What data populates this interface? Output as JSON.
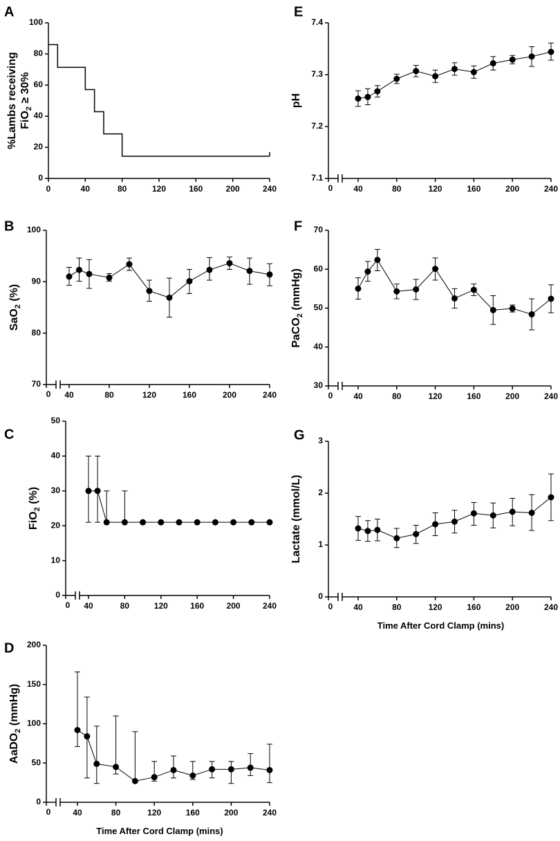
{
  "chart_data": [
    {
      "id": "A",
      "panel_label": "A",
      "type": "line",
      "step": true,
      "ylabel_line1": "%Lambs receiving",
      "ylabel_line2_main": "FiO",
      "ylabel_line2_sub": "2",
      "ylabel_line2_tail": " ≥ 30%",
      "xlabel": "",
      "xlim": [
        0,
        240
      ],
      "ylim": [
        0,
        100
      ],
      "xticks": [
        0,
        40,
        80,
        120,
        160,
        200,
        240
      ],
      "yticks": [
        0,
        20,
        40,
        60,
        80,
        100
      ],
      "series": [
        {
          "name": "%Lambs receiving FiO2 ≥ 30%",
          "x": [
            0,
            10,
            40,
            50,
            60,
            80,
            240
          ],
          "y": [
            86,
            71.4,
            57.1,
            42.9,
            28.6,
            14.3,
            14.3
          ]
        }
      ]
    },
    {
      "id": "B",
      "panel_label": "B",
      "type": "line",
      "ylabel_main": "SaO",
      "ylabel_sub": "2",
      "ylabel_tail": " (%)",
      "xlabel": "",
      "xlim": [
        40,
        240
      ],
      "ylim": [
        70,
        100
      ],
      "xticks": [
        40,
        80,
        120,
        160,
        200,
        240
      ],
      "yticks": [
        70,
        80,
        90,
        100
      ],
      "zero_tick": "0",
      "x": [
        40,
        50,
        60,
        80,
        100,
        120,
        140,
        160,
        180,
        200,
        220,
        240
      ],
      "y": [
        91.0,
        92.3,
        91.5,
        90.8,
        93.4,
        88.2,
        86.9,
        90.1,
        92.3,
        93.6,
        92.1,
        91.4
      ],
      "err_lo": [
        89.3,
        90.1,
        88.7,
        90.1,
        92.2,
        86.2,
        83.1,
        87.7,
        90.3,
        92.4,
        89.5,
        89.2
      ],
      "err_hi": [
        92.8,
        94.6,
        94.3,
        91.6,
        94.6,
        90.3,
        90.7,
        92.4,
        94.7,
        94.8,
        94.6,
        93.5
      ]
    },
    {
      "id": "C",
      "panel_label": "C",
      "type": "line",
      "ylabel_main": "FiO",
      "ylabel_sub": "2",
      "ylabel_tail": " (%)",
      "xlabel": "",
      "xlim": [
        40,
        240
      ],
      "ylim": [
        0,
        50
      ],
      "xticks": [
        40,
        80,
        120,
        160,
        200,
        240
      ],
      "yticks": [
        0,
        10,
        20,
        30,
        40,
        50
      ],
      "zero_tick": "0",
      "x": [
        40,
        50,
        60,
        80,
        100,
        120,
        140,
        160,
        180,
        200,
        220,
        240
      ],
      "y": [
        30,
        30,
        21,
        21,
        21,
        21,
        21,
        21,
        21,
        21,
        21,
        21
      ],
      "err_lo": [
        21,
        21,
        21,
        21,
        21,
        21,
        21,
        21,
        21,
        21,
        21,
        21
      ],
      "err_hi": [
        40,
        40,
        30,
        30,
        21,
        21,
        21,
        21,
        21,
        21,
        21,
        21
      ]
    },
    {
      "id": "D",
      "panel_label": "D",
      "type": "line",
      "ylabel_main": "AaDO",
      "ylabel_sub": "2",
      "ylabel_tail": " (mmHg)",
      "xlabel": "Time After Cord Clamp (mins)",
      "xlim": [
        40,
        240
      ],
      "ylim": [
        0,
        200
      ],
      "xticks": [
        40,
        80,
        120,
        160,
        200,
        240
      ],
      "yticks": [
        0,
        50,
        100,
        150,
        200
      ],
      "zero_tick": "0",
      "x": [
        40,
        50,
        60,
        80,
        100,
        120,
        140,
        160,
        180,
        200,
        220,
        240
      ],
      "y": [
        92,
        84,
        49,
        45,
        27,
        32,
        41,
        34,
        42,
        42,
        44,
        41
      ],
      "err_lo": [
        71,
        31,
        24,
        36,
        27,
        27,
        31,
        29,
        31,
        24,
        34,
        25
      ],
      "err_hi": [
        166,
        134,
        97,
        110,
        90,
        52,
        59,
        52,
        52,
        52,
        62,
        74
      ]
    },
    {
      "id": "E",
      "panel_label": "E",
      "type": "line",
      "ylabel_main": "pH",
      "ylabel_sub": "",
      "ylabel_tail": "",
      "xlabel": "",
      "xlim": [
        40,
        240
      ],
      "ylim": [
        7.1,
        7.4
      ],
      "xticks": [
        40,
        80,
        120,
        160,
        200,
        240
      ],
      "yticks": [
        7.1,
        7.2,
        7.3,
        7.4
      ],
      "zero_tick": "0",
      "x": [
        40,
        50,
        60,
        80,
        100,
        120,
        140,
        160,
        180,
        200,
        220,
        240
      ],
      "y": [
        7.254,
        7.257,
        7.268,
        7.292,
        7.307,
        7.297,
        7.311,
        7.305,
        7.322,
        7.329,
        7.335,
        7.344
      ],
      "err_lo": [
        7.239,
        7.242,
        7.257,
        7.283,
        7.296,
        7.285,
        7.299,
        7.293,
        7.309,
        7.321,
        7.316,
        7.328
      ],
      "err_hi": [
        7.269,
        7.273,
        7.279,
        7.301,
        7.318,
        7.309,
        7.323,
        7.317,
        7.335,
        7.337,
        7.354,
        7.361
      ]
    },
    {
      "id": "F",
      "panel_label": "F",
      "type": "line",
      "ylabel_main": "PaCO",
      "ylabel_sub": "2",
      "ylabel_tail": " (mmHg)",
      "xlabel": "",
      "xlim": [
        40,
        240
      ],
      "ylim": [
        30,
        70
      ],
      "xticks": [
        40,
        80,
        120,
        160,
        200,
        240
      ],
      "yticks": [
        30,
        40,
        50,
        60,
        70
      ],
      "zero_tick": "0",
      "x": [
        40,
        50,
        60,
        80,
        100,
        120,
        140,
        160,
        180,
        200,
        220,
        240
      ],
      "y": [
        55.0,
        59.4,
        62.4,
        54.3,
        54.8,
        60.1,
        52.5,
        54.7,
        49.5,
        49.9,
        48.4,
        52.4
      ],
      "err_lo": [
        52.3,
        56.9,
        59.6,
        52.4,
        52.2,
        57.2,
        50.0,
        53.2,
        45.8,
        49.0,
        44.4,
        48.8
      ],
      "err_hi": [
        57.8,
        62.0,
        65.1,
        56.2,
        57.4,
        62.9,
        55.0,
        56.2,
        53.2,
        50.8,
        52.4,
        56.0
      ]
    },
    {
      "id": "G",
      "panel_label": "G",
      "type": "line",
      "ylabel_main": "Lactate (mmol/L)",
      "ylabel_sub": "",
      "ylabel_tail": "",
      "xlabel": "Time After Cord Clamp (mins)",
      "xlim": [
        40,
        240
      ],
      "ylim": [
        0,
        3
      ],
      "xticks": [
        40,
        80,
        120,
        160,
        200,
        240
      ],
      "yticks": [
        0,
        1,
        2,
        3
      ],
      "zero_tick": "0",
      "x": [
        40,
        50,
        60,
        80,
        100,
        120,
        140,
        160,
        180,
        200,
        220,
        240
      ],
      "y": [
        1.32,
        1.27,
        1.29,
        1.13,
        1.21,
        1.4,
        1.45,
        1.61,
        1.57,
        1.64,
        1.62,
        1.92
      ],
      "err_lo": [
        1.09,
        1.07,
        1.08,
        0.95,
        1.03,
        1.18,
        1.23,
        1.38,
        1.33,
        1.37,
        1.28,
        1.47
      ],
      "err_hi": [
        1.55,
        1.47,
        1.5,
        1.32,
        1.38,
        1.62,
        1.67,
        1.82,
        1.81,
        1.9,
        1.97,
        2.37
      ]
    }
  ]
}
